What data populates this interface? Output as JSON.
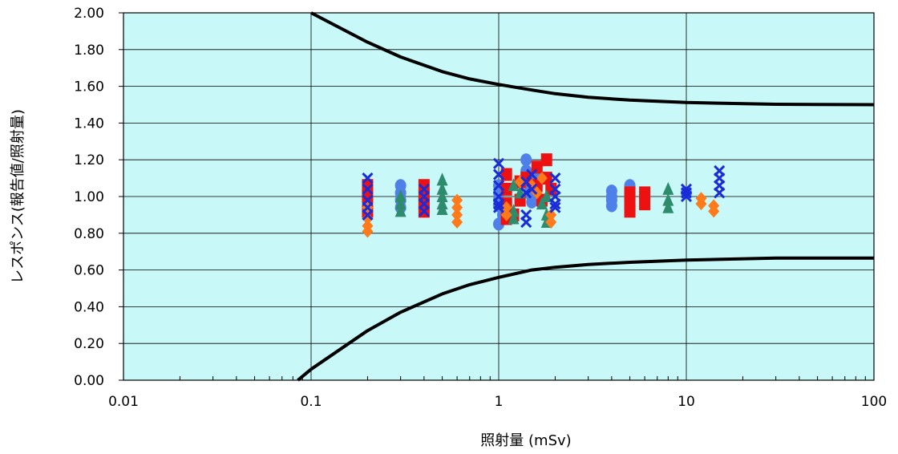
{
  "chart_data": {
    "type": "scatter",
    "xlabel": "照射量 (mSv)",
    "ylabel": "レスポンス(報告値/照射量)",
    "xscale": "log",
    "xlim": [
      0.01,
      100
    ],
    "ylim": [
      0,
      2
    ],
    "x_ticks": [
      0.01,
      0.1,
      1,
      10,
      100
    ],
    "x_tick_labels": [
      "0.01",
      "0.1",
      "1",
      "10",
      "100"
    ],
    "y_ticks": [
      0,
      0.2,
      0.4,
      0.6,
      0.8,
      1.0,
      1.2,
      1.4,
      1.6,
      1.8,
      2.0
    ],
    "y_tick_labels": [
      "0.00",
      "0.20",
      "0.40",
      "0.60",
      "0.80",
      "1.00",
      "1.20",
      "1.40",
      "1.60",
      "1.80",
      "2.00"
    ],
    "grid": "major x and y",
    "legend": "none",
    "colors": {
      "plot_background": "#c8f8f8",
      "grid": "#000000",
      "limit_curve": "#000000",
      "blue_circle": "#4f7fe8",
      "red_square": "#ee1111",
      "green_triangle": "#2e8b6b",
      "orange_diamond": "#ff7a1a",
      "navy_cross": "#1a2bd8"
    },
    "limit_curves": [
      {
        "role": "upper",
        "x": [
          0.1,
          0.2,
          0.3,
          0.5,
          0.7,
          1,
          1.5,
          2,
          3,
          5,
          10,
          30,
          100
        ],
        "y": [
          2.0,
          1.84,
          1.76,
          1.68,
          1.64,
          1.61,
          1.58,
          1.56,
          1.54,
          1.525,
          1.512,
          1.502,
          1.5
        ]
      },
      {
        "role": "lower",
        "x": [
          0.085,
          0.1,
          0.2,
          0.3,
          0.5,
          0.7,
          1,
          1.5,
          2,
          3,
          5,
          10,
          30,
          100
        ],
        "y": [
          0.0,
          0.06,
          0.27,
          0.37,
          0.47,
          0.52,
          0.56,
          0.6,
          0.615,
          0.63,
          0.642,
          0.654,
          0.665,
          0.665
        ]
      }
    ],
    "series": [
      {
        "marker": "circle",
        "color": "#4f7fe8",
        "x": [
          0.3,
          0.3,
          0.3,
          0.3,
          1,
          1,
          1,
          1,
          1,
          1.05,
          1.05,
          1.4,
          1.4,
          1.4,
          1.45,
          1.5,
          1.6,
          4,
          4,
          4,
          4,
          5,
          5,
          5,
          10
        ],
        "y": [
          1.06,
          1.02,
          0.98,
          0.94,
          1.06,
          1.02,
          0.98,
          0.95,
          0.85,
          1.04,
          0.9,
          1.2,
          1.14,
          1.08,
          1.02,
          0.97,
          1.1,
          1.03,
          1.0,
          0.98,
          0.95,
          1.06,
          1.02,
          0.98,
          1.02
        ]
      },
      {
        "marker": "square",
        "color": "#ee1111",
        "x": [
          0.2,
          0.2,
          0.2,
          0.4,
          0.4,
          0.4,
          0.4,
          1.1,
          1.1,
          1.1,
          1.1,
          1.2,
          1.3,
          1.3,
          1.4,
          1.6,
          1.6,
          1.7,
          1.8,
          1.8,
          1.9,
          5,
          5,
          5,
          6,
          6
        ],
        "y": [
          1.06,
          1.0,
          0.92,
          1.06,
          1.0,
          0.96,
          0.92,
          1.12,
          1.04,
          0.96,
          0.88,
          0.9,
          1.08,
          0.98,
          1.1,
          1.16,
          1.06,
          0.98,
          1.2,
          1.1,
          1.04,
          1.02,
          0.96,
          0.92,
          1.02,
          0.96
        ]
      },
      {
        "marker": "triangle",
        "color": "#2e8b6b",
        "x": [
          0.3,
          0.3,
          0.3,
          0.5,
          0.5,
          0.5,
          0.5,
          0.5,
          1.2,
          1.2,
          1.2,
          1.3,
          1.7,
          1.8,
          1.8,
          1.8,
          8,
          8,
          8
        ],
        "y": [
          1.0,
          0.96,
          0.92,
          1.09,
          1.04,
          1.0,
          0.96,
          0.93,
          1.06,
          0.92,
          0.88,
          1.02,
          0.96,
          1.0,
          0.9,
          0.86,
          1.04,
          0.98,
          0.94
        ]
      },
      {
        "marker": "diamond",
        "color": "#ff7a1a",
        "x": [
          0.2,
          0.2,
          0.2,
          0.2,
          0.6,
          0.6,
          0.6,
          0.6,
          1.1,
          1.1,
          1.3,
          1.5,
          1.6,
          1.7,
          1.9,
          1.9,
          12,
          12,
          14,
          14
        ],
        "y": [
          0.94,
          0.88,
          0.84,
          0.81,
          0.98,
          0.94,
          0.9,
          0.86,
          0.94,
          0.9,
          1.08,
          1.06,
          1.02,
          1.1,
          0.9,
          0.86,
          0.99,
          0.96,
          0.95,
          0.92
        ]
      },
      {
        "marker": "cross",
        "color": "#1a2bd8",
        "x": [
          0.2,
          0.2,
          0.2,
          0.2,
          0.2,
          0.4,
          0.4,
          0.4,
          0.4,
          1,
          1,
          1,
          1,
          1,
          1,
          1.4,
          1.4,
          1.4,
          1.4,
          1.5,
          1.5,
          2,
          2,
          2,
          2,
          2,
          10,
          10,
          10,
          15,
          15,
          15,
          15
        ],
        "y": [
          1.1,
          1.04,
          0.98,
          0.94,
          0.9,
          1.04,
          1.0,
          0.96,
          0.92,
          1.18,
          1.12,
          1.06,
          1.0,
          0.96,
          0.94,
          1.08,
          1.02,
          0.9,
          0.86,
          1.12,
          1.04,
          1.1,
          1.04,
          1.0,
          0.96,
          0.94,
          1.04,
          1.02,
          1.0,
          1.14,
          1.1,
          1.06,
          1.02
        ]
      }
    ]
  }
}
